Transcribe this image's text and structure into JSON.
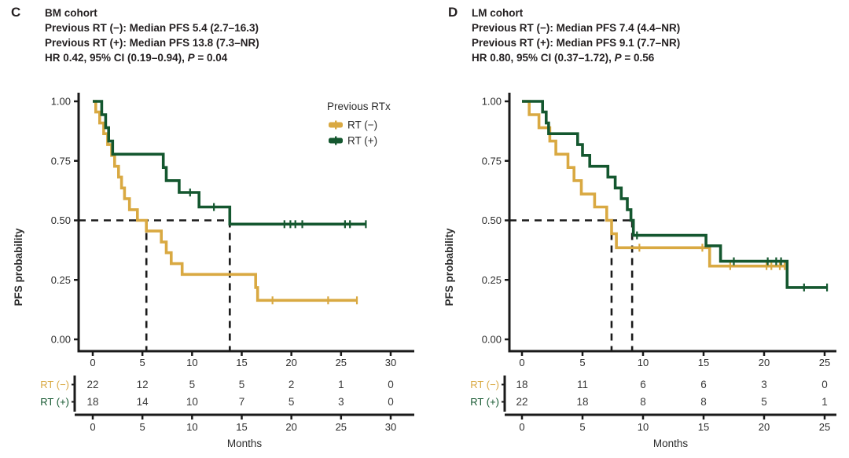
{
  "colors": {
    "rt_neg": "#D9A942",
    "rt_pos": "#14572F",
    "axis": "#1A1A1A",
    "text": "#2B2B2B",
    "risk_number": "#3A3A3A",
    "dashed": "#1A1A1A"
  },
  "legend": {
    "title": "Previous RTx",
    "items": [
      {
        "label": "RT (−)",
        "color": "rt_neg"
      },
      {
        "label": "RT (+)",
        "color": "rt_pos"
      }
    ]
  },
  "panels": [
    {
      "letter": "C",
      "title": "BM cohort",
      "median_neg": "Previous RT (−): Median PFS 5.4 (2.7–16.3)",
      "median_pos": "Previous RT (+): Median PFS 13.8 (7.3–NR)",
      "hr_pre": "HR 0.42, 95% CI (0.19–0.94), ",
      "p_label": "P",
      "p_suffix": " = 0.04"
    },
    {
      "letter": "D",
      "title": "LM cohort",
      "median_neg": "Previous RT (−): Median PFS 7.4 (4.4–NR)",
      "median_pos": "Previous RT (+): Median PFS 9.1 (7.7–NR)",
      "hr_pre": "HR 0.80, 95% CI (0.37–1.72), ",
      "p_label": "P",
      "p_suffix": " = 0.56"
    }
  ],
  "chart_data": [
    {
      "type": "line",
      "subtype": "kaplan-meier-step",
      "panel": "C",
      "title": "BM cohort",
      "xlabel": "Months",
      "ylabel": "PFS probability",
      "xlim": [
        0,
        30
      ],
      "xticks": [
        0,
        5,
        10,
        15,
        20,
        25,
        30
      ],
      "ylim": [
        0,
        1
      ],
      "yticks": [
        0,
        0.25,
        0.5,
        0.75,
        1
      ],
      "grid": false,
      "legend_position": "top-right-inside",
      "legend": true,
      "medians": [
        5.4,
        13.8
      ],
      "median_line_y": 0.5,
      "stats": {
        "hr": 0.42,
        "ci": "0.19–0.94",
        "p": 0.04,
        "median_pfs_rt_neg": "5.4 (2.7–16.3)",
        "median_pfs_rt_pos": "13.8 (7.3–NR)"
      },
      "series": [
        {
          "key": "rt-neg",
          "name": "RT (−)",
          "color": "rt_neg",
          "steps": [
            [
              0,
              1
            ],
            [
              0.3,
              0.955
            ],
            [
              0.7,
              0.909
            ],
            [
              1.1,
              0.864
            ],
            [
              1.5,
              0.818
            ],
            [
              1.9,
              0.773
            ],
            [
              2.2,
              0.727
            ],
            [
              2.6,
              0.682
            ],
            [
              2.9,
              0.636
            ],
            [
              3.2,
              0.591
            ],
            [
              3.7,
              0.545
            ],
            [
              4.5,
              0.5
            ],
            [
              5.4,
              0.455
            ],
            [
              6.9,
              0.409
            ],
            [
              7.4,
              0.364
            ],
            [
              7.9,
              0.318
            ],
            [
              9.0,
              0.273
            ],
            [
              16.4,
              0.218
            ],
            [
              16.6,
              0.164
            ]
          ],
          "censors": [
            [
              18.1,
              0.164
            ],
            [
              23.7,
              0.164
            ]
          ],
          "end_x": 26.6
        },
        {
          "key": "rt-pos",
          "name": "RT (+)",
          "color": "rt_pos",
          "steps": [
            [
              0,
              1
            ],
            [
              0.9,
              0.944
            ],
            [
              1.3,
              0.889
            ],
            [
              1.6,
              0.833
            ],
            [
              2.0,
              0.778
            ],
            [
              7.1,
              0.722
            ],
            [
              7.4,
              0.667
            ],
            [
              8.7,
              0.617
            ],
            [
              10.7,
              0.556
            ],
            [
              13.8,
              0.484
            ]
          ],
          "censors": [
            [
              9.8,
              0.617
            ],
            [
              12.2,
              0.556
            ],
            [
              19.3,
              0.484
            ],
            [
              19.9,
              0.484
            ],
            [
              20.4,
              0.484
            ],
            [
              21.1,
              0.484
            ],
            [
              25.4,
              0.484
            ],
            [
              25.9,
              0.484
            ]
          ],
          "end_x": 27.5
        }
      ],
      "risk_table": {
        "rows": [
          {
            "label": "RT (−)",
            "color": "rt_neg",
            "counts": [
              22,
              12,
              5,
              5,
              2,
              1,
              0
            ]
          },
          {
            "label": "RT (+)",
            "color": "rt_pos",
            "counts": [
              18,
              14,
              10,
              7,
              5,
              3,
              0
            ]
          }
        ]
      }
    },
    {
      "type": "line",
      "subtype": "kaplan-meier-step",
      "panel": "D",
      "title": "LM cohort",
      "xlabel": "Months",
      "ylabel": "PFS probability",
      "xlim": [
        0,
        25
      ],
      "xticks": [
        0,
        5,
        10,
        15,
        20,
        25
      ],
      "ylim": [
        0,
        1
      ],
      "yticks": [
        0,
        0.25,
        0.5,
        0.75,
        1
      ],
      "grid": false,
      "legend": false,
      "medians": [
        7.4,
        9.1
      ],
      "median_line_y": 0.5,
      "stats": {
        "hr": 0.8,
        "ci": "0.37–1.72",
        "p": 0.56,
        "median_pfs_rt_neg": "7.4 (4.4–NR)",
        "median_pfs_rt_pos": "9.1 (7.7–NR)"
      },
      "series": [
        {
          "key": "rt-neg",
          "name": "RT (−)",
          "color": "rt_neg",
          "steps": [
            [
              0,
              1
            ],
            [
              0.6,
              0.944
            ],
            [
              1.4,
              0.889
            ],
            [
              2.3,
              0.833
            ],
            [
              2.8,
              0.778
            ],
            [
              3.8,
              0.722
            ],
            [
              4.3,
              0.667
            ],
            [
              4.9,
              0.611
            ],
            [
              6.0,
              0.556
            ],
            [
              7.0,
              0.5
            ],
            [
              7.4,
              0.444
            ],
            [
              7.8,
              0.385
            ],
            [
              15.5,
              0.308
            ]
          ],
          "censors": [
            [
              9.7,
              0.385
            ],
            [
              14.9,
              0.385
            ],
            [
              17.2,
              0.308
            ],
            [
              20.2,
              0.308
            ],
            [
              20.6,
              0.308
            ],
            [
              21.3,
              0.308
            ]
          ],
          "end_x": 21.7
        },
        {
          "key": "rt-pos",
          "name": "RT (+)",
          "color": "rt_pos",
          "steps": [
            [
              0,
              1
            ],
            [
              1.7,
              0.955
            ],
            [
              2.0,
              0.909
            ],
            [
              2.2,
              0.864
            ],
            [
              4.6,
              0.818
            ],
            [
              5.0,
              0.773
            ],
            [
              5.6,
              0.727
            ],
            [
              7.1,
              0.682
            ],
            [
              7.7,
              0.636
            ],
            [
              8.2,
              0.591
            ],
            [
              8.7,
              0.545
            ],
            [
              9.0,
              0.5
            ],
            [
              9.2,
              0.437
            ],
            [
              15.2,
              0.393
            ],
            [
              16.4,
              0.328
            ],
            [
              21.9,
              0.218
            ]
          ],
          "censors": [
            [
              9.5,
              0.437
            ],
            [
              17.5,
              0.328
            ],
            [
              20.3,
              0.328
            ],
            [
              21.0,
              0.328
            ],
            [
              21.4,
              0.328
            ],
            [
              23.3,
              0.218
            ]
          ],
          "end_x": 25.2
        }
      ],
      "risk_table": {
        "rows": [
          {
            "label": "RT (−)",
            "color": "rt_neg",
            "counts": [
              18,
              11,
              6,
              6,
              3,
              0
            ]
          },
          {
            "label": "RT (+)",
            "color": "rt_pos",
            "counts": [
              22,
              18,
              8,
              8,
              5,
              1
            ]
          }
        ]
      }
    }
  ]
}
